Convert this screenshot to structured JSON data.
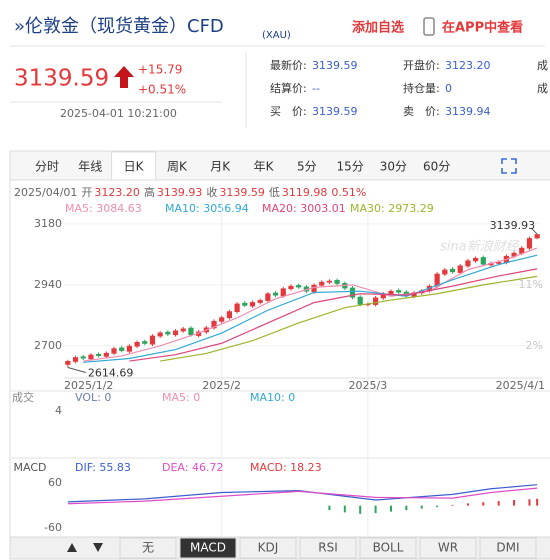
{
  "header": {
    "title": "»伦敦金（现货黄金）CFD",
    "code": "(XAU)",
    "add": "添加自选",
    "app": "在APP中查看"
  },
  "quote": {
    "price": "3139.59",
    "change": "+15.79",
    "change_pct": "+0.51%",
    "time": "2025-04-01 10:21:00"
  },
  "stats": [
    [
      {
        "label": "最新价:",
        "value": "3139.59"
      },
      {
        "label": "开盘价:",
        "value": "3123.20"
      },
      {
        "label": "成"
      }
    ],
    [
      {
        "label": "结算价:",
        "value": "--"
      },
      {
        "label": "持仓量:",
        "value": "0"
      },
      {
        "label": "成"
      }
    ],
    [
      {
        "label": "买　价:",
        "value": "3139.59"
      },
      {
        "label": "卖　价:",
        "value": "3139.94"
      }
    ]
  ],
  "tabs": {
    "items": [
      "分时",
      "年线",
      "日K",
      "周K",
      "月K",
      "年K",
      "5分",
      "15分",
      "30分",
      "60分"
    ],
    "active": 2
  },
  "bottom_tabs": {
    "items": [
      "无",
      "MACD",
      "KDJ",
      "RSI",
      "BOLL",
      "WR",
      "DMI"
    ],
    "active": 1
  },
  "chart_data": [
    {
      "type": "candlestick",
      "watermark": "sina新浪财经",
      "info": {
        "date": "2025/04/01",
        "items": [
          [
            "开",
            "3123.20"
          ],
          [
            "高",
            "3139.93"
          ],
          [
            "收",
            "3139.59"
          ],
          [
            "低",
            "3119.98"
          ]
        ],
        "pct": "0.51%"
      },
      "up_color": "#e4393c",
      "down_color": "#2aa55b",
      "grid": true,
      "xlim": [
        -0.5,
        61.5
      ],
      "xticks": [
        {
          "value": 0,
          "label": "2025/1/2"
        },
        {
          "value": 20,
          "label": "2025/2"
        },
        {
          "value": 39,
          "label": "2025/3"
        },
        {
          "value": 61,
          "label": "2025/4/1"
        }
      ],
      "ylim": [
        2585,
        3282
      ],
      "yticks": [
        2700,
        2940,
        3180
      ],
      "y2lim": [
        -2.31,
        23.82
      ],
      "y2ticks": [
        {
          "value": 11,
          "label": "11%"
        },
        {
          "value": 2,
          "label": "2%"
        }
      ],
      "candles": [
        [
          2625,
          2645,
          2614.69,
          2640
        ],
        [
          2637,
          2661,
          2631,
          2655
        ],
        [
          2658,
          2664,
          2644,
          2650
        ],
        [
          2647,
          2671,
          2641,
          2665
        ],
        [
          2668,
          2674,
          2654,
          2660
        ],
        [
          2657,
          2678,
          2651,
          2672
        ],
        [
          2669,
          2696,
          2663,
          2690
        ],
        [
          2693,
          2699,
          2674,
          2680
        ],
        [
          2677,
          2706,
          2671,
          2700
        ],
        [
          2697,
          2721,
          2691,
          2715
        ],
        [
          2718,
          2724,
          2702,
          2708
        ],
        [
          2705,
          2746,
          2699,
          2740
        ],
        [
          2737,
          2758,
          2731,
          2752
        ],
        [
          2755,
          2761,
          2739,
          2745
        ],
        [
          2742,
          2766,
          2736,
          2760
        ],
        [
          2757,
          2774,
          2751,
          2768
        ],
        [
          2771,
          2777,
          2736,
          2742
        ],
        [
          2739,
          2762,
          2733,
          2756
        ],
        [
          2753,
          2778,
          2747,
          2772
        ],
        [
          2769,
          2804,
          2763,
          2798
        ],
        [
          2795,
          2818,
          2789,
          2812
        ],
        [
          2809,
          2842,
          2803,
          2836
        ],
        [
          2833,
          2872,
          2827,
          2866
        ],
        [
          2869,
          2875,
          2852,
          2858
        ],
        [
          2855,
          2878,
          2849,
          2872
        ],
        [
          2869,
          2886,
          2863,
          2880
        ],
        [
          2877,
          2912,
          2871,
          2906
        ],
        [
          2909,
          2915,
          2892,
          2898
        ],
        [
          2895,
          2932,
          2889,
          2926
        ],
        [
          2923,
          2942,
          2917,
          2936
        ],
        [
          2939,
          2945,
          2924,
          2930
        ],
        [
          2933,
          2939,
          2908,
          2914
        ],
        [
          2911,
          2946,
          2905,
          2940
        ],
        [
          2937,
          2958,
          2931,
          2952
        ],
        [
          2949,
          2962,
          2943,
          2956
        ],
        [
          2959,
          2965,
          2938,
          2944
        ],
        [
          2947,
          2953,
          2920,
          2926
        ],
        [
          2929,
          2935,
          2884,
          2890
        ],
        [
          2893,
          2899,
          2856,
          2862
        ],
        [
          2861,
          2870,
          2855,
          2864
        ],
        [
          2861,
          2896,
          2855,
          2890
        ],
        [
          2887,
          2912,
          2881,
          2906
        ],
        [
          2903,
          2922,
          2897,
          2916
        ],
        [
          2919,
          2925,
          2904,
          2910
        ],
        [
          2913,
          2919,
          2890,
          2896
        ],
        [
          2893,
          2916,
          2887,
          2910
        ],
        [
          2907,
          2924,
          2901,
          2918
        ],
        [
          2915,
          2942,
          2909,
          2936
        ],
        [
          2933,
          2990,
          2927,
          2984
        ],
        [
          2981,
          3006,
          2975,
          3000
        ],
        [
          3003,
          3009,
          2984,
          2990
        ],
        [
          2987,
          3022,
          2981,
          3016
        ],
        [
          3013,
          3042,
          3007,
          3036
        ],
        [
          3033,
          3052,
          3027,
          3046
        ],
        [
          3049,
          3055,
          3014,
          3020
        ],
        [
          3017,
          3032,
          3011,
          3026
        ],
        [
          3023,
          3036,
          3017,
          3030
        ],
        [
          3027,
          3060,
          3021,
          3054
        ],
        [
          3051,
          3072,
          3045,
          3066
        ],
        [
          3063,
          3092,
          3057,
          3086
        ],
        [
          3083,
          3130,
          3077,
          3124
        ],
        [
          3123.2,
          3139.93,
          3119.98,
          3139.59
        ]
      ],
      "ma_lines": [
        {
          "label": "MA5: 3084.63",
          "color": "#f08db0",
          "x": [
            2,
            7,
            12,
            17,
            22,
            27,
            32,
            37,
            42,
            47,
            52,
            57,
            61
          ],
          "values": [
            2640,
            2660,
            2700,
            2750,
            2810,
            2885,
            2930,
            2940,
            2895,
            2915,
            3000,
            3040,
            3084.63
          ]
        },
        {
          "label": "MA10: 3056.94",
          "color": "#2fa9d6",
          "x": [
            2,
            8,
            14,
            20,
            26,
            32,
            38,
            44,
            50,
            56,
            61
          ],
          "values": [
            2635,
            2650,
            2685,
            2750,
            2840,
            2910,
            2915,
            2895,
            2960,
            3020,
            3056.94
          ]
        },
        {
          "label": "MA20: 3003.01",
          "color": "#e0457b",
          "x": [
            8,
            14,
            20,
            26,
            32,
            38,
            44,
            50,
            56,
            61
          ],
          "values": [
            2640,
            2665,
            2710,
            2790,
            2870,
            2905,
            2900,
            2935,
            2975,
            3003.01
          ]
        },
        {
          "label": "MA30: 2973.29",
          "color": "#9cb52b",
          "x": [
            12,
            18,
            24,
            30,
            36,
            42,
            48,
            54,
            61
          ],
          "values": [
            2640,
            2670,
            2720,
            2790,
            2850,
            2880,
            2905,
            2940,
            2973.29
          ]
        }
      ]
    },
    {
      "type": "volume",
      "labels": [
        {
          "text": "成交",
          "color": "#888"
        },
        {
          "text": "VOL: 0",
          "color": "#6b7fae"
        },
        {
          "text": "MA5: 0",
          "color": "#f08db0"
        },
        {
          "text": "MA10: 0",
          "color": "#2fa9d6"
        }
      ],
      "ylim": [
        0,
        4
      ],
      "yticks": [
        4
      ]
    },
    {
      "type": "macd",
      "labels": [
        {
          "text": "MACD",
          "color": "#555"
        },
        {
          "text": "DIF: 55.83",
          "color": "#3a5fcd"
        },
        {
          "text": "DEA: 46.72",
          "color": "#e04cc7"
        },
        {
          "text": "MACD: 18.23",
          "color": "#e4393c"
        }
      ],
      "ylim": [
        -81,
        95
      ],
      "yticks": [
        60,
        -60
      ],
      "lines": [
        {
          "color": "#3a5fcd",
          "x": [
            0,
            10,
            20,
            30,
            40,
            50,
            55,
            61
          ],
          "values": [
            10,
            18,
            35,
            40,
            15,
            30,
            45,
            55.83
          ]
        },
        {
          "color": "#e04cc7",
          "x": [
            0,
            10,
            20,
            30,
            40,
            50,
            55,
            61
          ],
          "values": [
            5,
            12,
            25,
            38,
            22,
            20,
            35,
            46.72
          ]
        }
      ],
      "hist": {
        "x": [
          34,
          36,
          38,
          40,
          42,
          44,
          46,
          48,
          50,
          52,
          54,
          56,
          58,
          60,
          61
        ],
        "values": [
          -12,
          -18,
          -22,
          -20,
          -16,
          -12,
          -8,
          -4,
          2,
          6,
          9,
          12,
          15,
          17,
          18.23
        ]
      }
    }
  ]
}
